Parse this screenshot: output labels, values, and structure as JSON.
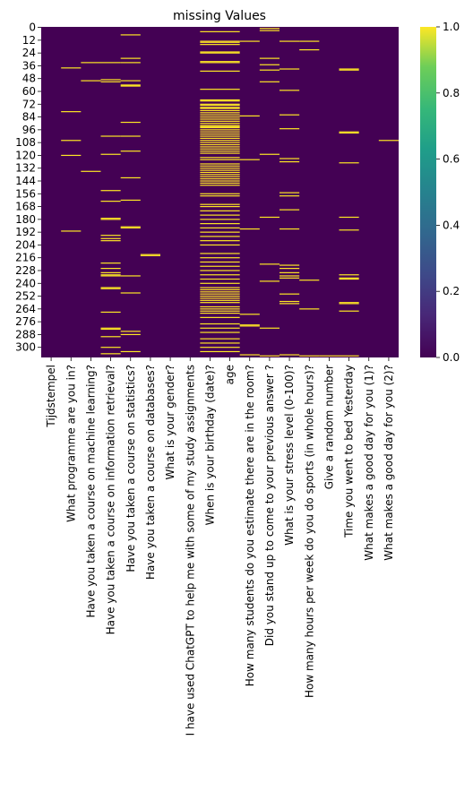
{
  "chart_data": {
    "type": "heatmap",
    "title": "missing Values",
    "xlabel": "",
    "ylabel": "",
    "colormap": "viridis",
    "colors": {
      "missing": "#fde725",
      "present": "#440154",
      "background": "#ffffff",
      "text": "#000000"
    },
    "value_range": [
      0.0,
      1.0
    ],
    "n_rows": 310,
    "y_tick_labels": [
      "0",
      "12",
      "24",
      "36",
      "48",
      "60",
      "72",
      "84",
      "96",
      "108",
      "120",
      "132",
      "144",
      "156",
      "168",
      "180",
      "192",
      "204",
      "216",
      "228",
      "240",
      "252",
      "264",
      "276",
      "288",
      "300"
    ],
    "colorbar_ticks": [
      "0.0",
      "0.2",
      "0.4",
      "0.6",
      "0.8",
      "1.0"
    ],
    "columns": [
      {
        "name": "Tijdstempel",
        "missing_rows": []
      },
      {
        "name": "What programme are you in?",
        "missing_rows": [
          38,
          79,
          106,
          120,
          191
        ]
      },
      {
        "name": "Have you taken a course on machine learning?",
        "missing_rows": [
          33,
          50,
          135
        ]
      },
      {
        "name": "Have you taken a course on information retrieval?",
        "missing_rows": [
          33,
          49,
          51,
          102,
          119,
          153,
          163,
          179,
          180,
          195,
          198,
          200,
          221,
          226,
          230,
          232,
          233,
          244,
          245,
          267,
          282,
          283,
          290,
          300,
          306
        ]
      },
      {
        "name": "Have you taken a course on statistics?",
        "missing_rows": [
          7,
          29,
          33,
          50,
          54,
          55,
          89,
          102,
          116,
          141,
          162,
          187,
          188,
          233,
          249,
          285,
          288,
          304
        ]
      },
      {
        "name": "Have you taken a course on databases?",
        "missing_rows": [
          213,
          214
        ]
      },
      {
        "name": "What is your gender?",
        "missing_rows": []
      },
      {
        "name": "I have used ChatGPT to help me with some of my study assignments",
        "missing_rows": []
      },
      {
        "name": "When is your birthday (date)?",
        "missing_rows": [
          4,
          13,
          14,
          16,
          23,
          24,
          32,
          33,
          41,
          58,
          68,
          69,
          72,
          73,
          75,
          76,
          78,
          80,
          82,
          84,
          86,
          88,
          90,
          92,
          93,
          94,
          96,
          98,
          100,
          102,
          104,
          106,
          108,
          110,
          112,
          114,
          116,
          118,
          122,
          124,
          128,
          130,
          132,
          134,
          136,
          138,
          140,
          142,
          144,
          146,
          148,
          156,
          158,
          166,
          168,
          172,
          176,
          180,
          184,
          188,
          192,
          196,
          200,
          204,
          212,
          216,
          220,
          224,
          228,
          232,
          236,
          240,
          244,
          246,
          248,
          250,
          252,
          254,
          256,
          258,
          262,
          264,
          266,
          268,
          272,
          278,
          282,
          286,
          292,
          296,
          300,
          304
        ]
      },
      {
        "name": "age",
        "missing_rows": [
          4,
          13,
          14,
          16,
          23,
          24,
          32,
          33,
          41,
          58,
          68,
          69,
          72,
          73,
          75,
          76,
          78,
          80,
          82,
          84,
          86,
          88,
          90,
          92,
          93,
          94,
          96,
          98,
          100,
          102,
          104,
          106,
          108,
          110,
          112,
          114,
          116,
          118,
          122,
          124,
          128,
          130,
          132,
          134,
          136,
          138,
          140,
          142,
          144,
          146,
          148,
          156,
          158,
          166,
          168,
          172,
          176,
          180,
          184,
          188,
          192,
          196,
          200,
          204,
          212,
          216,
          220,
          224,
          228,
          232,
          236,
          240,
          244,
          246,
          248,
          250,
          252,
          254,
          256,
          258,
          262,
          264,
          266,
          268,
          272,
          278,
          282,
          286,
          292,
          296,
          300,
          304
        ]
      },
      {
        "name": "How many students do you estimate there are in the room?",
        "missing_rows": [
          13,
          83,
          124,
          189,
          269,
          279,
          280,
          307
        ]
      },
      {
        "name": "Did you stand up to come to your previous answer ?",
        "missing_rows": [
          1,
          3,
          29,
          35,
          40,
          51,
          119,
          178,
          222,
          238,
          282,
          308
        ]
      },
      {
        "name": "What is your stress level (0-100)?",
        "missing_rows": [
          13,
          39,
          59,
          82,
          95,
          123,
          126,
          155,
          158,
          171,
          189,
          223,
          226,
          230,
          233,
          235,
          250,
          257,
          259,
          307
        ]
      },
      {
        "name": "How many hours per week do you do sports (in whole hours)?",
        "missing_rows": [
          13,
          21,
          237,
          264,
          308
        ]
      },
      {
        "name": "Give a random number",
        "missing_rows": [
          308
        ]
      },
      {
        "name": "Time you went to bed Yesterday",
        "missing_rows": [
          39,
          40,
          98,
          99,
          127,
          178,
          190,
          232,
          235,
          236,
          258,
          259,
          266,
          308
        ]
      },
      {
        "name": "What makes a good day for you (1)?",
        "missing_rows": []
      },
      {
        "name": "What makes a good day for you (2)?",
        "missing_rows": [
          106
        ]
      }
    ]
  }
}
